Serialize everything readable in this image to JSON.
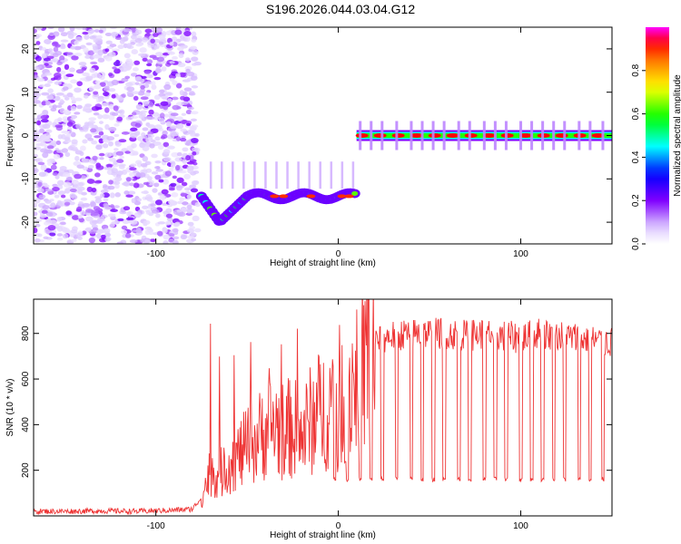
{
  "title": "S196.2026.044.03.04.G12",
  "chart_data": [
    {
      "type": "heatmap",
      "title": "S196.2026.044.03.04.G12",
      "xlabel": "Height of straight line (km)",
      "ylabel": "Frequency (Hz)",
      "xlim": [
        -167,
        150
      ],
      "ylim": [
        -25,
        25
      ],
      "xticks": [
        -100,
        0,
        100
      ],
      "yticks": [
        -20,
        -10,
        0,
        10,
        20
      ],
      "colorbar": {
        "label": "Normalized spectral amplitude",
        "range": [
          0,
          1
        ],
        "ticks": [
          0.0,
          0.2,
          0.4,
          0.6,
          0.8
        ],
        "tick_labels": [
          "0.0",
          "0.2",
          "0.4",
          "0.6",
          "0.8"
        ],
        "colors": [
          "#ffffff",
          "#8000ff",
          "#0000ff",
          "#00ffff",
          "#00ff00",
          "#ffff00",
          "#ff8000",
          "#ff0000",
          "#ff00ff"
        ]
      },
      "regions": [
        {
          "name": "noise",
          "x_range": [
            -167,
            -77
          ],
          "freq_range": [
            -25,
            25
          ],
          "amplitude": 0.15
        },
        {
          "name": "signal-low",
          "x_range": [
            -75,
            10
          ],
          "freq": [
            -14,
            -20,
            -14,
            -14
          ],
          "amplitude": 0.6
        },
        {
          "name": "signal-zero",
          "x_range": [
            10,
            150
          ],
          "freq": 0,
          "amplitude": 0.95
        }
      ]
    },
    {
      "type": "line",
      "xlabel": "Height of straight line (km)",
      "ylabel": "SNR (10 * v/v)",
      "xlim": [
        -167,
        150
      ],
      "ylim": [
        0,
        950
      ],
      "xticks": [
        -100,
        0,
        100
      ],
      "yticks": [
        200,
        400,
        600,
        800
      ],
      "series": [
        {
          "name": "SNR",
          "color": "#ee3333",
          "x": [
            -167,
            -150,
            -130,
            -110,
            -90,
            -80,
            -75,
            -70,
            -65,
            -60,
            -55,
            -50,
            -45,
            -40,
            -35,
            -30,
            -25,
            -20,
            -15,
            -10,
            -5,
            0,
            5,
            10,
            15,
            20,
            25,
            30,
            40,
            50,
            60,
            70,
            80,
            90,
            100,
            110,
            120,
            130,
            140,
            150
          ],
          "values": [
            20,
            20,
            22,
            20,
            25,
            30,
            80,
            200,
            180,
            230,
            260,
            300,
            330,
            380,
            400,
            370,
            390,
            350,
            420,
            460,
            480,
            520,
            560,
            620,
            700,
            760,
            780,
            790,
            800,
            800,
            800,
            790,
            800,
            790,
            780,
            800,
            790,
            780,
            770,
            760
          ]
        }
      ],
      "spikes": {
        "value": 150,
        "x": [
          -2,
          5,
          12,
          18,
          24,
          32,
          40,
          46,
          52,
          58,
          66,
          72,
          80,
          86,
          92,
          100,
          106,
          112,
          118,
          124,
          132,
          138,
          145
        ]
      }
    }
  ]
}
